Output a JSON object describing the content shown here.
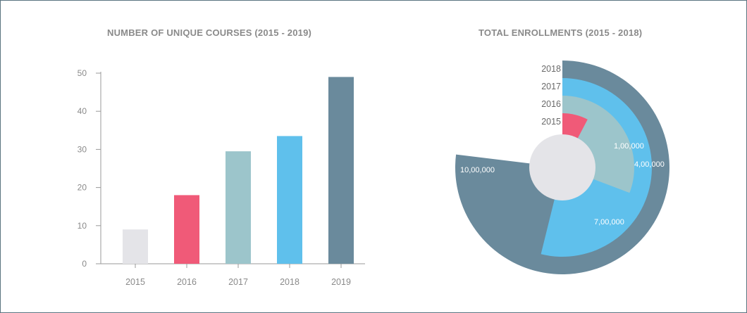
{
  "chart_data": [
    {
      "type": "bar",
      "title": "NUMBER OF UNIQUE COURSES (2015 - 2019)",
      "categories": [
        "2015",
        "2016",
        "2017",
        "2018",
        "2019"
      ],
      "values": [
        9,
        18,
        29.5,
        33.5,
        49
      ],
      "colors": [
        "#e4e4e8",
        "#f05a78",
        "#9cc5cb",
        "#5fc0ec",
        "#6a8a9c"
      ],
      "yticks": [
        0,
        10,
        20,
        30,
        40,
        50
      ],
      "ylim": [
        0,
        50
      ],
      "xlabel": "",
      "ylabel": "",
      "grid": false
    },
    {
      "type": "radial-bar",
      "title": "TOTAL ENROLLMENTS (2015 - 2018)",
      "categories": [
        "2015",
        "2016",
        "2017",
        "2018"
      ],
      "values": [
        100000,
        400000,
        700000,
        1000000
      ],
      "labels": [
        "1,00,000",
        "4,00,000",
        "7,00,000",
        "10,00,000"
      ],
      "colors": [
        "#f05a78",
        "#9cc5cb",
        "#5fc0ec",
        "#6a8a9c"
      ],
      "center_color": "#e4e4e8",
      "max": 1300000
    }
  ]
}
